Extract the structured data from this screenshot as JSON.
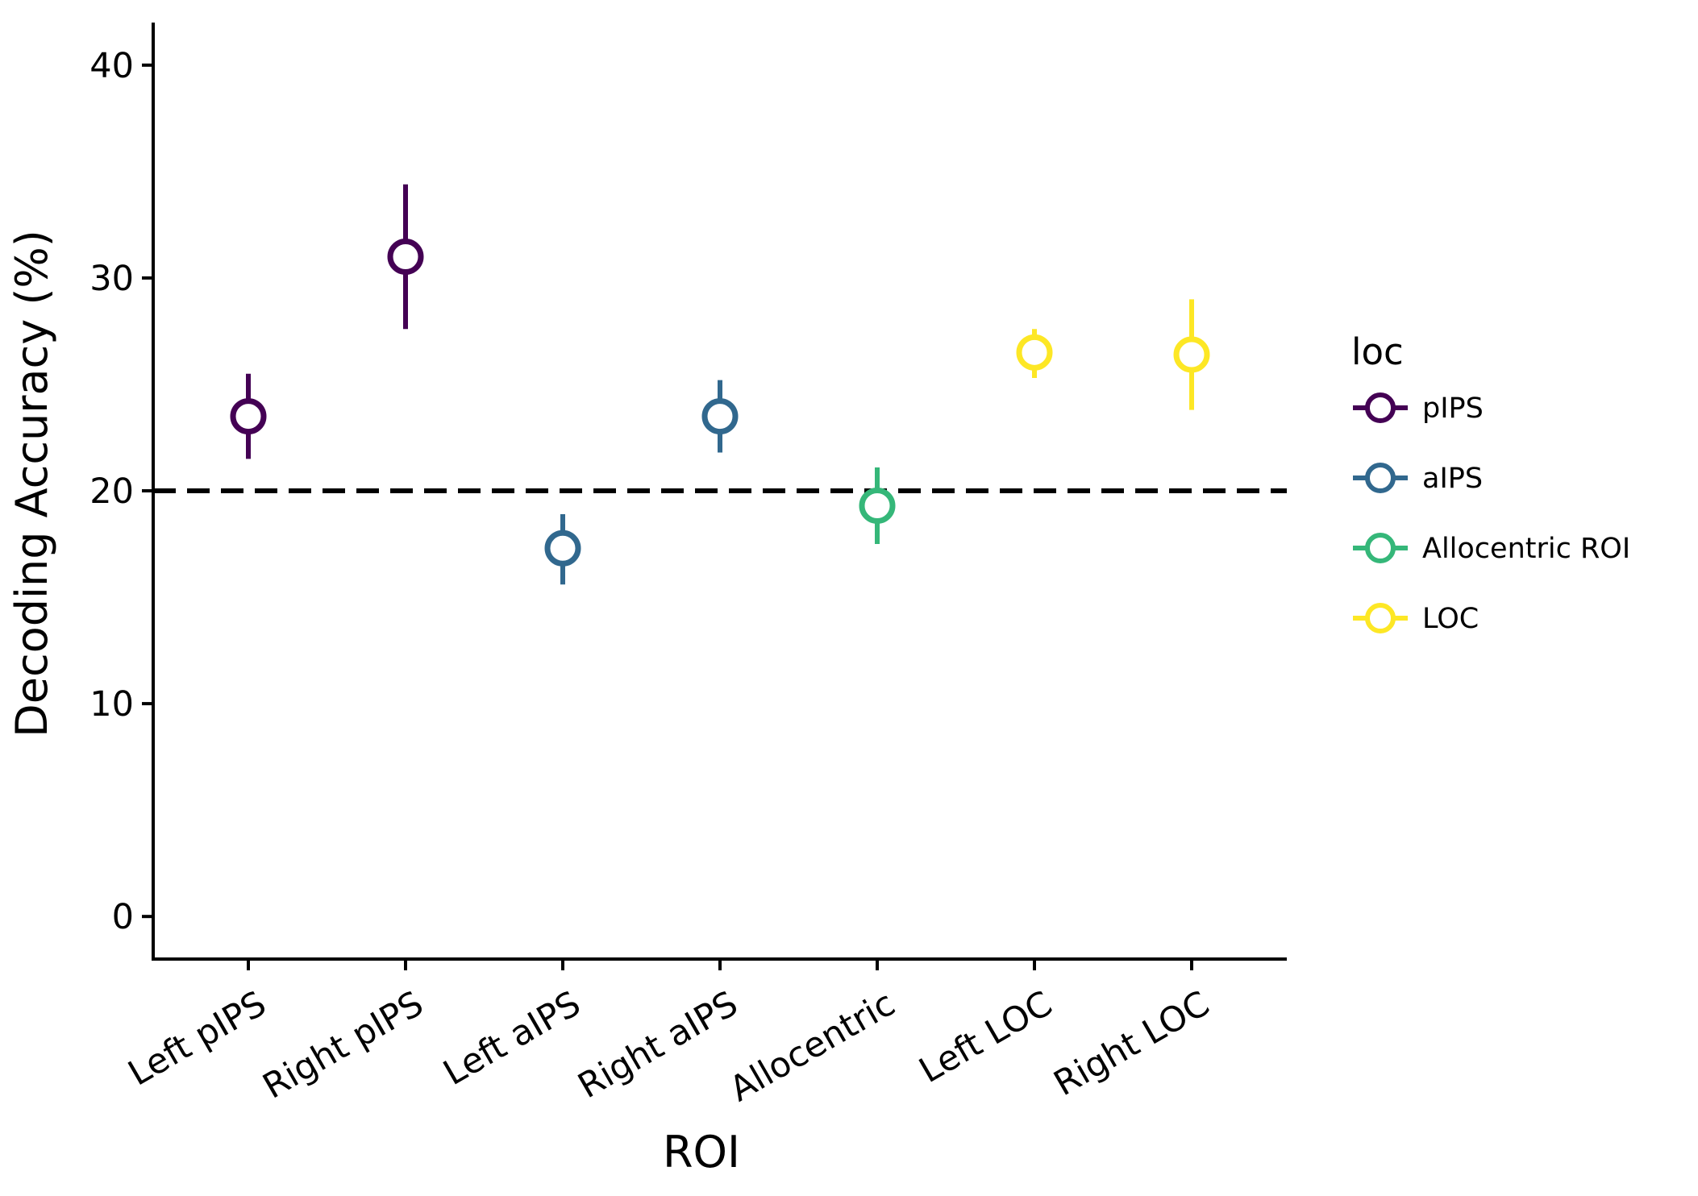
{
  "chart_data": {
    "type": "scatter",
    "subtype": "point-with-errorbars",
    "xlabel": "ROI",
    "ylabel": "Decoding Accuracy (%)",
    "categories": [
      "Left pIPS",
      "Right pIPS",
      "Left aIPS",
      "Right aIPS",
      "Allocentric",
      "Left LOC",
      "Right LOC"
    ],
    "ylim": [
      -2,
      42
    ],
    "yticks": [
      0,
      10,
      20,
      30,
      40
    ],
    "reference_line": {
      "y": 20,
      "style": "dashed",
      "color": "#000000"
    },
    "grid": false,
    "legend": {
      "title": "loc",
      "position": "right",
      "entries": [
        {
          "label": "pIPS",
          "color": "#440154"
        },
        {
          "label": "aIPS",
          "color": "#31688e"
        },
        {
          "label": "Allocentric ROI",
          "color": "#35b779"
        },
        {
          "label": "LOC",
          "color": "#fde725"
        }
      ]
    },
    "points": [
      {
        "category": "Left pIPS",
        "group": "pIPS",
        "y": 23.5,
        "ymin": 21.5,
        "ymax": 25.5
      },
      {
        "category": "Right pIPS",
        "group": "pIPS",
        "y": 31.0,
        "ymin": 27.6,
        "ymax": 34.4
      },
      {
        "category": "Left aIPS",
        "group": "aIPS",
        "y": 17.3,
        "ymin": 15.6,
        "ymax": 18.9
      },
      {
        "category": "Right aIPS",
        "group": "aIPS",
        "y": 23.5,
        "ymin": 21.8,
        "ymax": 25.2
      },
      {
        "category": "Allocentric",
        "group": "Allocentric ROI",
        "y": 19.3,
        "ymin": 17.5,
        "ymax": 21.1
      },
      {
        "category": "Left LOC",
        "group": "LOC",
        "y": 26.5,
        "ymin": 25.3,
        "ymax": 27.6
      },
      {
        "category": "Right LOC",
        "group": "LOC",
        "y": 26.4,
        "ymin": 23.8,
        "ymax": 29.0
      }
    ]
  }
}
